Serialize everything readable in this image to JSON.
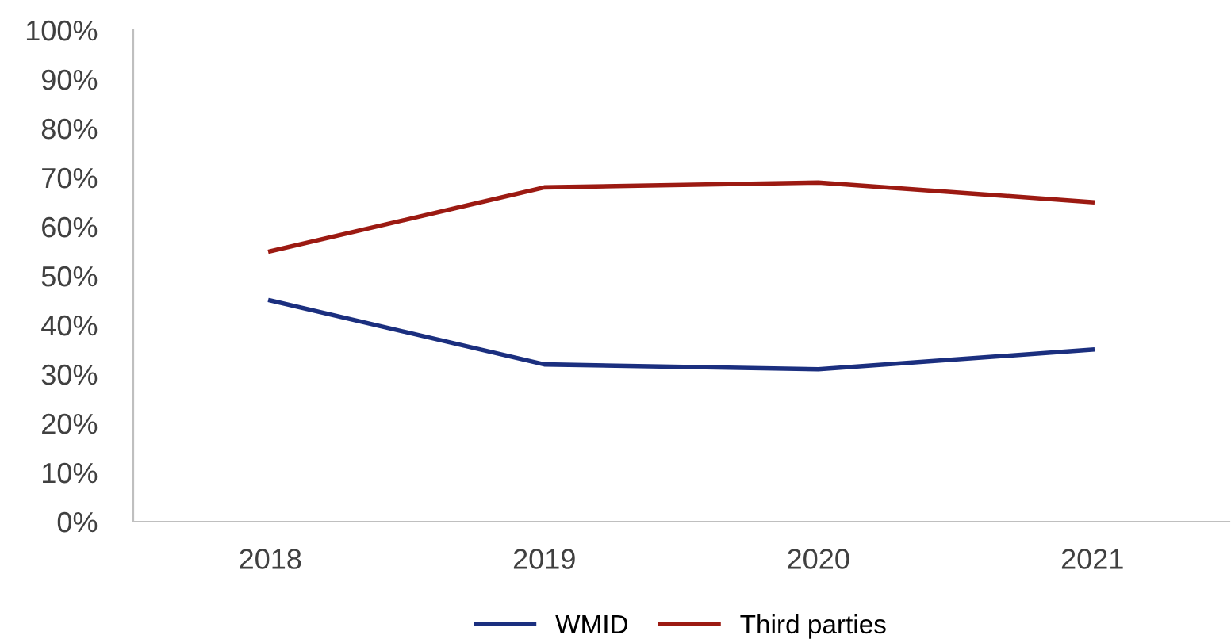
{
  "chart_data": {
    "type": "line",
    "categories": [
      "2018",
      "2019",
      "2020",
      "2021"
    ],
    "series": [
      {
        "name": "WMID",
        "color": "#1b2f7f",
        "values": [
          45,
          32,
          31,
          35
        ]
      },
      {
        "name": "Third parties",
        "color": "#9c1a12",
        "values": [
          55,
          68,
          69,
          65
        ]
      }
    ],
    "ylim": [
      0,
      100
    ],
    "yticks": [
      {
        "value": 0,
        "label": "0%"
      },
      {
        "value": 10,
        "label": "10%"
      },
      {
        "value": 20,
        "label": "20%"
      },
      {
        "value": 30,
        "label": "30%"
      },
      {
        "value": 40,
        "label": "40%"
      },
      {
        "value": 50,
        "label": "50%"
      },
      {
        "value": 60,
        "label": "60%"
      },
      {
        "value": 70,
        "label": "70%"
      },
      {
        "value": 80,
        "label": "80%"
      },
      {
        "value": 90,
        "label": "90%"
      },
      {
        "value": 100,
        "label": "100%"
      }
    ],
    "grid": false,
    "legend": "bottom",
    "marker": "none",
    "line_style": "solid"
  }
}
